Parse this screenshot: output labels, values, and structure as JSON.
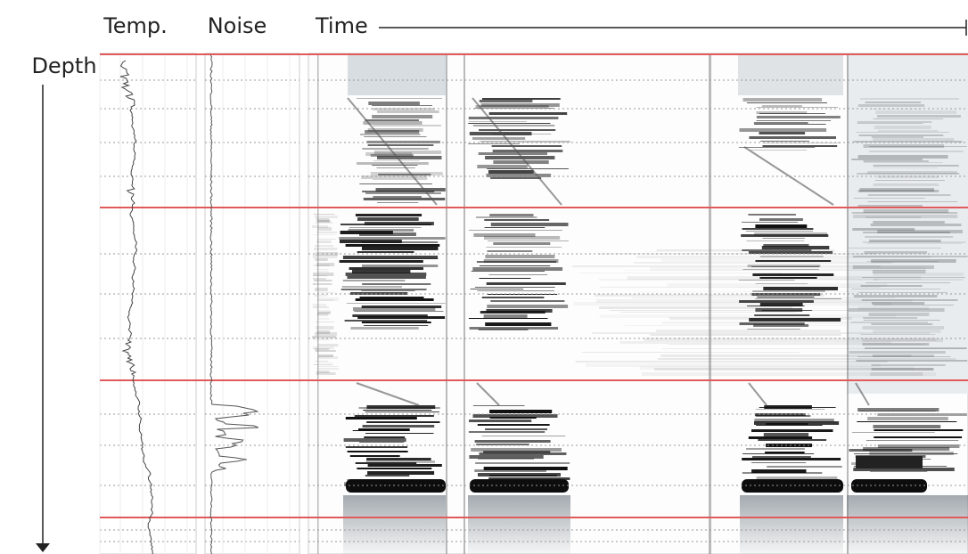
{
  "labels": {
    "temperature": "Temp.",
    "noise": "Noise",
    "time": "Time",
    "depth": "Depth"
  }
}
